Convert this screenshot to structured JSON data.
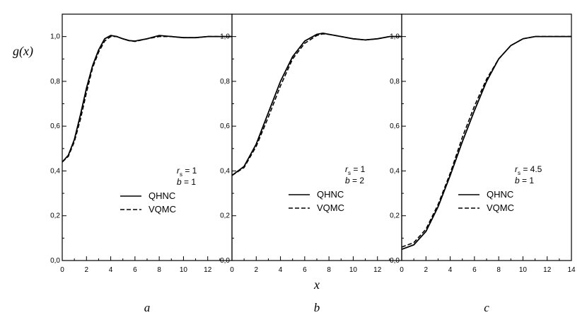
{
  "chart_data": [
    {
      "type": "line",
      "panel_label": "a",
      "ylabel": "g(x)",
      "xlabel": "",
      "xlim": [
        0,
        14
      ],
      "ylim": [
        0.0,
        1.1
      ],
      "x_ticks": [
        "0",
        "2",
        "4",
        "6",
        "8",
        "10",
        "12"
      ],
      "y_ticks": [
        "0,0",
        "0,2",
        "0,4",
        "0,6",
        "0,8",
        "1,0"
      ],
      "params": {
        "rs_label": "r",
        "rs_sub": "s",
        "rs_value": "= 1",
        "b_label": "b",
        "b_value": "= 1"
      },
      "series": [
        {
          "name": "QHNC",
          "style": "solid",
          "x": [
            0,
            0.5,
            1,
            1.5,
            2,
            2.5,
            3,
            3.5,
            4,
            4.5,
            5,
            5.5,
            6,
            7,
            8,
            9,
            10,
            11,
            12,
            13,
            14
          ],
          "y": [
            0.44,
            0.47,
            0.54,
            0.65,
            0.77,
            0.87,
            0.94,
            0.99,
            1.005,
            1.0,
            0.99,
            0.982,
            0.98,
            0.99,
            1.005,
            1.0,
            0.995,
            0.995,
            1.0,
            1.0,
            1.0
          ]
        },
        {
          "name": "VQMC",
          "style": "dashed",
          "x": [
            0,
            0.5,
            1,
            1.5,
            2,
            2.5,
            3,
            3.5,
            4,
            4.5,
            5,
            5.5,
            6,
            7,
            8,
            9,
            10,
            11,
            12,
            13,
            14
          ],
          "y": [
            0.44,
            0.465,
            0.53,
            0.63,
            0.75,
            0.86,
            0.93,
            0.98,
            1.0,
            1.0,
            0.99,
            0.982,
            0.978,
            0.99,
            1.0,
            1.0,
            0.995,
            0.995,
            1.0,
            1.0,
            1.0
          ]
        }
      ]
    },
    {
      "type": "line",
      "panel_label": "b",
      "ylabel": "",
      "xlabel": "x",
      "xlim": [
        0,
        14
      ],
      "ylim": [
        0.0,
        1.1
      ],
      "x_ticks": [
        "0",
        "2",
        "4",
        "6",
        "8",
        "10",
        "12"
      ],
      "y_ticks": [
        "0,0",
        "0,2",
        "0,4",
        "0,6",
        "0,8",
        "1,0"
      ],
      "params": {
        "rs_label": "r",
        "rs_sub": "s",
        "rs_value": "= 1",
        "b_label": "b",
        "b_value": "= 2"
      },
      "series": [
        {
          "name": "QHNC",
          "style": "solid",
          "x": [
            0,
            1,
            2,
            3,
            4,
            5,
            6,
            7,
            7.5,
            8,
            9,
            10,
            11,
            12,
            13,
            14
          ],
          "y": [
            0.38,
            0.42,
            0.52,
            0.66,
            0.8,
            0.91,
            0.98,
            1.01,
            1.015,
            1.01,
            1.0,
            0.99,
            0.985,
            0.99,
            1.0,
            1.0
          ]
        },
        {
          "name": "VQMC",
          "style": "dashed",
          "x": [
            0,
            1,
            2,
            3,
            4,
            5,
            6,
            7,
            7.5,
            8,
            9,
            10,
            11,
            12,
            13,
            14
          ],
          "y": [
            0.38,
            0.415,
            0.51,
            0.64,
            0.78,
            0.9,
            0.97,
            1.005,
            1.012,
            1.01,
            1.0,
            0.99,
            0.985,
            0.99,
            1.0,
            1.0
          ]
        }
      ]
    },
    {
      "type": "line",
      "panel_label": "c",
      "ylabel": "",
      "xlabel": "",
      "xlim": [
        0,
        14
      ],
      "ylim": [
        0.0,
        1.1
      ],
      "x_ticks": [
        "0",
        "2",
        "4",
        "6",
        "8",
        "10",
        "12",
        "14"
      ],
      "y_ticks": [
        "0,0",
        "0,2",
        "0,4",
        "0,6",
        "0,8",
        "1,0"
      ],
      "params": {
        "rs_label": "r",
        "rs_sub": "s",
        "rs_value": "= 4.5",
        "b_label": "b",
        "b_value": "= 1"
      },
      "series": [
        {
          "name": "QHNC",
          "style": "solid",
          "x": [
            0,
            1,
            2,
            3,
            4,
            5,
            6,
            7,
            8,
            9,
            10,
            11,
            12,
            13,
            14
          ],
          "y": [
            0.05,
            0.07,
            0.13,
            0.24,
            0.38,
            0.53,
            0.67,
            0.8,
            0.9,
            0.96,
            0.99,
            1.0,
            1.0,
            1.0,
            1.0
          ]
        },
        {
          "name": "VQMC",
          "style": "dashed",
          "x": [
            0,
            1,
            2,
            3,
            4,
            5,
            6,
            7,
            8,
            9,
            10,
            11,
            12,
            13,
            14
          ],
          "y": [
            0.06,
            0.08,
            0.14,
            0.25,
            0.39,
            0.55,
            0.69,
            0.81,
            0.9,
            0.96,
            0.99,
            1.0,
            1.0,
            1.0,
            1.0
          ]
        }
      ]
    }
  ]
}
